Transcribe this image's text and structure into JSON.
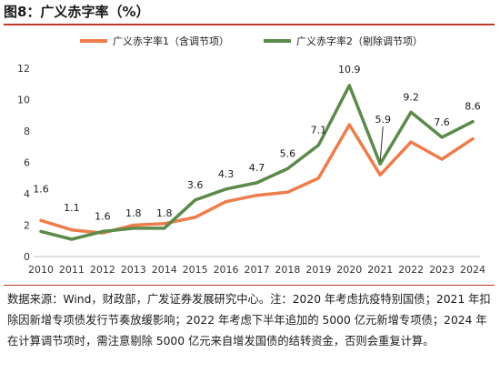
{
  "title": "图8：广义赤字率（%）",
  "chart_data": {
    "type": "line",
    "categories": [
      "2010",
      "2011",
      "2012",
      "2013",
      "2014",
      "2015",
      "2016",
      "2017",
      "2018",
      "2019",
      "2020",
      "2021",
      "2022",
      "2023",
      "2024"
    ],
    "ylim": [
      0,
      12
    ],
    "yticks": [
      "0",
      "2",
      "4",
      "6",
      "8",
      "10",
      "12"
    ],
    "grid": false,
    "legend_position": "top",
    "series": [
      {
        "name": "广义赤字率1（含调节项）",
        "color": "#ed7d4a",
        "values": [
          2.3,
          1.7,
          1.5,
          2.0,
          2.1,
          2.5,
          3.5,
          3.9,
          4.1,
          5.0,
          8.4,
          5.2,
          7.3,
          6.2,
          7.5
        ],
        "labels": []
      },
      {
        "name": "广义赤字率2（剔除调节项）",
        "color": "#5b8a4a",
        "values": [
          1.6,
          1.1,
          1.6,
          1.8,
          1.8,
          3.6,
          4.3,
          4.7,
          5.6,
          7.1,
          10.9,
          5.9,
          9.2,
          7.6,
          8.6
        ],
        "labels": [
          "1.6",
          "1.1",
          "1.6",
          "1.8",
          "1.8",
          "3.6",
          "4.3",
          "4.7",
          "5.6",
          "7.1",
          "10.9",
          "5.9",
          "9.2",
          "7.6",
          "8.6"
        ]
      }
    ]
  },
  "note": "数据来源：Wind，财政部，广发证券发展研究中心。注：2020 年考虑抗疫特别国债；2021 年扣除因新增专项债发行节奏放缓影响；2022 年考虑下半年追加的 5000 亿元新增专项债；2024 年在计算调节项时，需注意剔除 5000 亿元来自增发国债的结转资金，否则会重复计算。"
}
